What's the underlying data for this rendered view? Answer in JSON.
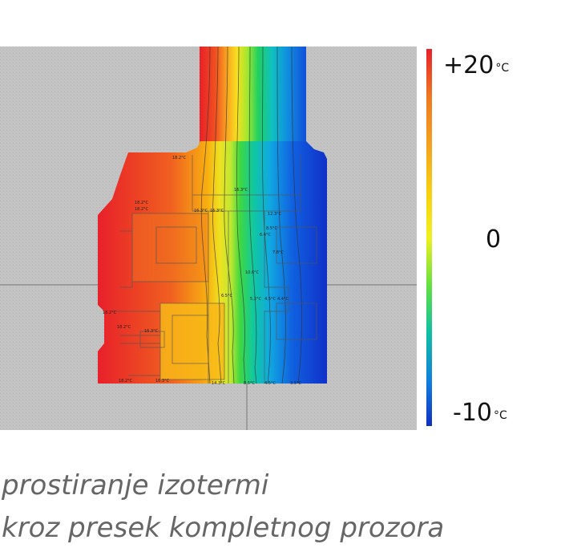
{
  "scale": {
    "max_value": "+20",
    "zero_value": "0",
    "min_value": "-10",
    "unit": "°C",
    "colors": [
      "#e8202a",
      "#f07a20",
      "#f4a020",
      "#f8d010",
      "#f0f020",
      "#60e040",
      "#10c0a0",
      "#1080e0",
      "#1030c0"
    ]
  },
  "caption": {
    "line1": "prostiranje izotermi",
    "line2": "kroz presek kompletnog prozora"
  },
  "isotherm_labels": [
    "18.2°C",
    "18.2°C",
    "18.2°C",
    "16.3°C",
    "16.3°C",
    "16.3°C",
    "12.3°C",
    "8.5°C",
    "6.4°C",
    "7.8°C",
    "10.6°C",
    "6.5°C",
    "5.2°C",
    "4.5°C",
    "4.4°C",
    "18.2°C",
    "18.2°C",
    "16.3°C",
    "18.2°C",
    "16.3°C",
    "14.3°C",
    "8.5°C",
    "4.5°C",
    "3.5°C"
  ]
}
